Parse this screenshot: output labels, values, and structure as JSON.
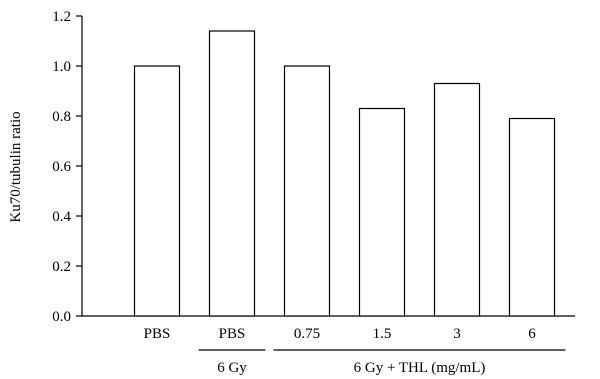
{
  "chart_data": {
    "type": "bar",
    "title": "",
    "xlabel": "",
    "ylabel": "Ku70/tubulin ratio",
    "ylim": [
      0,
      1.2
    ],
    "yticks": [
      "0.0",
      "0.2",
      "0.4",
      "0.6",
      "0.8",
      "1.0",
      "1.2"
    ],
    "categories": [
      "PBS",
      "PBS",
      "0.75",
      "1.5",
      "3",
      "6"
    ],
    "values": [
      1.0,
      1.14,
      1.0,
      0.83,
      0.93,
      0.79
    ],
    "groups": [
      {
        "label": "6 Gy",
        "start": 1,
        "end": 1
      },
      {
        "label": "6 Gy + THL (mg/mL)",
        "start": 2,
        "end": 5
      }
    ],
    "grid": false,
    "colors": {
      "bar_fill": "#ffffff",
      "bar_stroke": "#000000",
      "axis": "#000000"
    }
  }
}
